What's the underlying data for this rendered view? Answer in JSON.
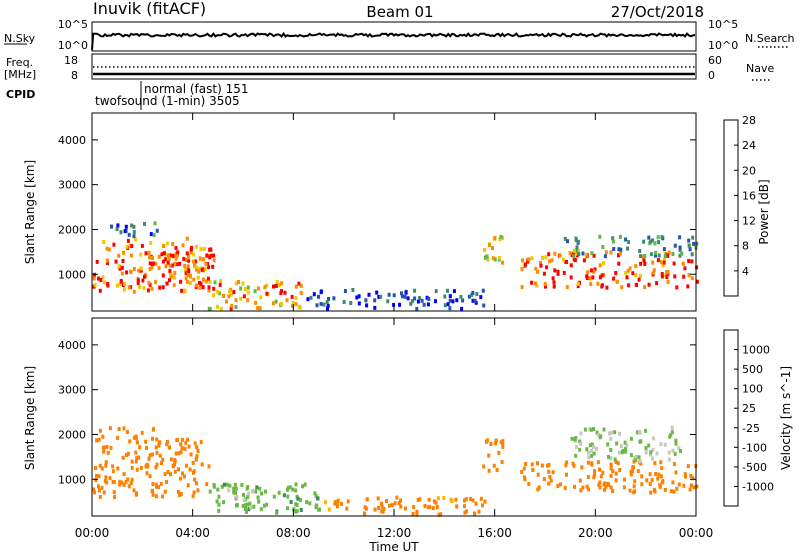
{
  "header": {
    "station": "Inuvik (fitACF)",
    "beam": "Beam 01",
    "date": "27/Oct/2018"
  },
  "strip": {
    "nsky_label": "N.Sky",
    "nsky_ticks": [
      "10^5",
      "10^0"
    ],
    "nsearch_label": "N.Search",
    "nsearch_ticks": [
      "10^5",
      "10^0"
    ],
    "freq_label": "Freq.",
    "freq_unit": "[MHz]",
    "freq_ticks": [
      "18",
      "8"
    ],
    "nave_label": "Nave",
    "nave_ticks": [
      "60",
      "0"
    ],
    "cpid_label": "CPID",
    "cpid_modes": [
      "normal (fast) 151",
      "twofsound (1-min) 3505"
    ]
  },
  "chart_data": [
    {
      "type": "heatmap",
      "title": "",
      "xlabel": "Time UT",
      "ylabel": "Slant Range [km]",
      "colorbar_label": "Power [dB]",
      "x_ticks": [
        "00:00",
        "04:00",
        "08:00",
        "12:00",
        "16:00",
        "20:00",
        "00:00"
      ],
      "y_ticks": [
        "1000",
        "2000",
        "3000",
        "4000"
      ],
      "xlim": [
        0,
        24
      ],
      "ylim": [
        180,
        4600
      ],
      "colorbar_ticks": [
        "4",
        "8",
        "12",
        "16",
        "20",
        "24",
        "28"
      ],
      "colorbar_range": [
        0,
        30
      ],
      "colors": [
        "#0000ff",
        "#2456b0",
        "#3e8c6c",
        "#5cb848",
        "#f0c800",
        "#ff8c00",
        "#ff0000"
      ],
      "regions": [
        {
          "t0": 0.0,
          "t1": 4.7,
          "r0": 600,
          "r1": 1800,
          "level": 24
        },
        {
          "t0": 0.7,
          "t1": 2.6,
          "r0": 1800,
          "r1": 2150,
          "level": 8
        },
        {
          "t0": 2.0,
          "t1": 4.8,
          "r0": 700,
          "r1": 1500,
          "level": 26
        },
        {
          "t0": 4.6,
          "t1": 8.5,
          "r0": 220,
          "r1": 900,
          "level": 22
        },
        {
          "t0": 8.5,
          "t1": 15.7,
          "r0": 220,
          "r1": 650,
          "level": 6
        },
        {
          "t0": 15.5,
          "t1": 16.3,
          "r0": 1000,
          "r1": 1900,
          "level": 18
        },
        {
          "t0": 17.0,
          "t1": 24.0,
          "r0": 700,
          "r1": 1500,
          "level": 26
        },
        {
          "t0": 18.5,
          "t1": 24.0,
          "r0": 1400,
          "r1": 1850,
          "level": 12
        }
      ]
    },
    {
      "type": "heatmap",
      "title": "",
      "xlabel": "Time UT",
      "ylabel": "Slant Range [km]",
      "colorbar_label": "Velocity [m s^-1]",
      "x_ticks": [
        "00:00",
        "04:00",
        "08:00",
        "12:00",
        "16:00",
        "20:00",
        "00:00"
      ],
      "y_ticks": [
        "1000",
        "2000",
        "3000",
        "4000"
      ],
      "xlim": [
        0,
        24
      ],
      "ylim": [
        180,
        4600
      ],
      "colorbar_ticks": [
        "1000",
        "500",
        "100",
        "25",
        "-25",
        "-100",
        "-500",
        "-1000"
      ],
      "colors": [
        "#1e3cc8",
        "#2a6ec0",
        "#3a8c5c",
        "#6ab848",
        "#c8c8c0",
        "#ffb400",
        "#ff8000",
        "#ff0000"
      ],
      "regions": [
        {
          "t0": 0.0,
          "t1": 4.6,
          "r0": 600,
          "r1": 1900,
          "level": -200
        },
        {
          "t0": 0.2,
          "t1": 2.5,
          "r0": 1900,
          "r1": 2150,
          "level": -150
        },
        {
          "t0": 4.6,
          "t1": 9.0,
          "r0": 250,
          "r1": 900,
          "level": 20
        },
        {
          "t0": 5.2,
          "t1": 6.5,
          "r0": 300,
          "r1": 800,
          "level": 0
        },
        {
          "t0": 9.0,
          "t1": 15.7,
          "r0": 200,
          "r1": 600,
          "level": -150
        },
        {
          "t0": 15.5,
          "t1": 16.3,
          "r0": 1100,
          "r1": 1900,
          "level": -200
        },
        {
          "t0": 17.0,
          "t1": 24.0,
          "r0": 700,
          "r1": 1400,
          "level": -300
        },
        {
          "t0": 19.0,
          "t1": 23.5,
          "r0": 1400,
          "r1": 2150,
          "level": 0
        }
      ]
    }
  ]
}
